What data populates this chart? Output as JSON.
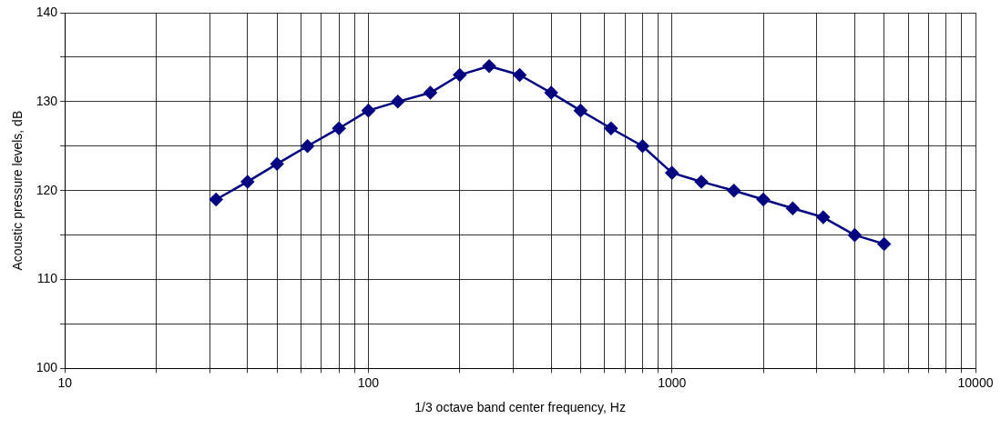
{
  "chart_data": {
    "type": "line",
    "xlabel": "1/3 octave band center frequency, Hz",
    "ylabel": "Acoustic pressure levels, dB",
    "x": [
      31.5,
      40,
      50,
      63,
      80,
      100,
      125,
      160,
      200,
      250,
      315,
      400,
      500,
      630,
      800,
      1000,
      1250,
      1600,
      2000,
      2500,
      3150,
      4000,
      5000
    ],
    "values": [
      119,
      121,
      123,
      125,
      127,
      129,
      130,
      131,
      133,
      134,
      133,
      131,
      129,
      127,
      125,
      122,
      121,
      120,
      119,
      118,
      117,
      115,
      114
    ],
    "color": "#000080",
    "marker": "diamond",
    "line_style": "solid",
    "log": "x",
    "grid": true,
    "xlim": [
      10,
      10000
    ],
    "xticks": [
      10,
      {
        "value": 20,
        "label": null
      },
      {
        "value": 30,
        "label": null
      },
      {
        "value": 40,
        "label": null
      },
      {
        "value": 50,
        "label": null
      },
      {
        "value": 60,
        "label": null
      },
      {
        "value": 70,
        "label": null
      },
      {
        "value": 80,
        "label": null
      },
      {
        "value": 90,
        "label": null
      },
      100,
      {
        "value": 200,
        "label": null
      },
      {
        "value": 300,
        "label": null
      },
      {
        "value": 400,
        "label": null
      },
      {
        "value": 500,
        "label": null
      },
      {
        "value": 600,
        "label": null
      },
      {
        "value": 700,
        "label": null
      },
      {
        "value": 800,
        "label": null
      },
      {
        "value": 900,
        "label": null
      },
      1000,
      {
        "value": 2000,
        "label": null
      },
      {
        "value": 3000,
        "label": null
      },
      {
        "value": 4000,
        "label": null
      },
      {
        "value": 5000,
        "label": null
      },
      {
        "value": 6000,
        "label": null
      },
      {
        "value": 7000,
        "label": null
      },
      {
        "value": 8000,
        "label": null
      },
      {
        "value": 9000,
        "label": null
      },
      10000
    ],
    "ylim": [
      100,
      140
    ],
    "yticks": [
      100,
      {
        "value": 105,
        "label": null
      },
      110,
      {
        "value": 115,
        "label": null
      },
      120,
      {
        "value": 125,
        "label": null
      },
      130,
      {
        "value": 135,
        "label": null
      },
      140
    ]
  }
}
